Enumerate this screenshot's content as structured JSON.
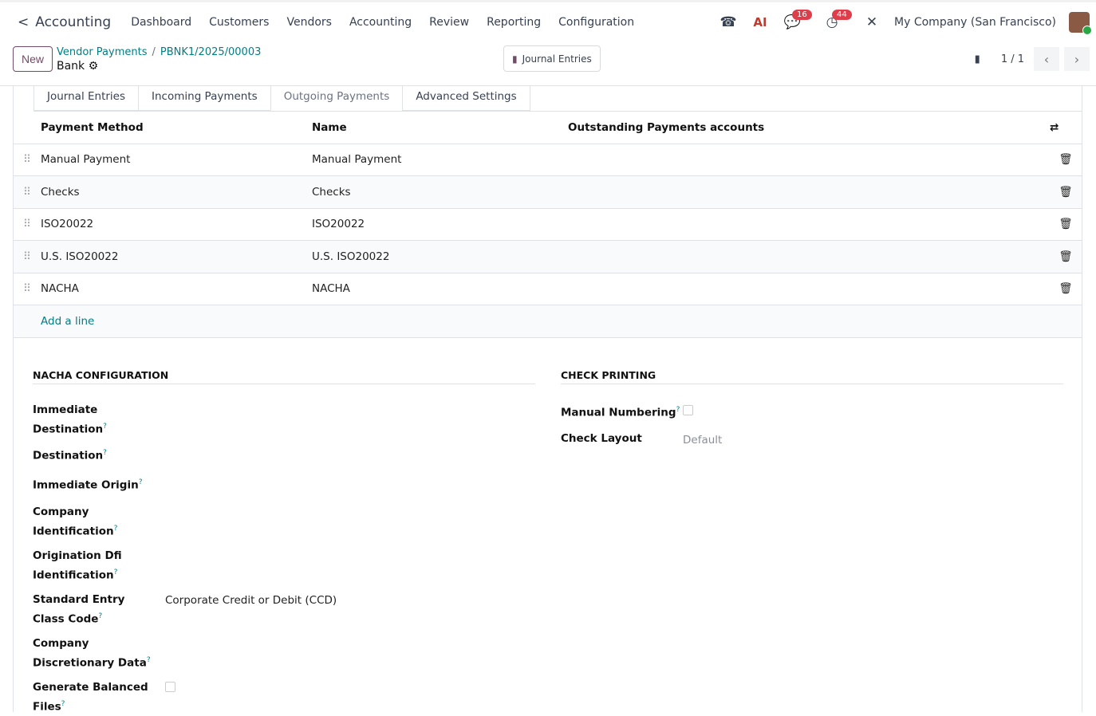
{
  "nav": {
    "app": "Accounting",
    "menu": [
      "Dashboard",
      "Customers",
      "Vendors",
      "Accounting",
      "Review",
      "Reporting",
      "Configuration"
    ],
    "ai": "AI",
    "messages_count": "16",
    "activities_count": "44",
    "company": "My Company (San Francisco)"
  },
  "control": {
    "new": "New",
    "breadcrumb": [
      "Vendor Payments",
      "PBNK1/2025/00003"
    ],
    "record": "Bank",
    "journal_entries": "Journal Entries",
    "pager": "1 / 1"
  },
  "tabs": [
    "Journal Entries",
    "Incoming Payments",
    "Outgoing Payments",
    "Advanced Settings"
  ],
  "active_tab": "Outgoing Payments",
  "table": {
    "headers": [
      "Payment Method",
      "Name",
      "Outstanding Payments accounts"
    ],
    "rows": [
      {
        "method": "Manual Payment",
        "name": "Manual Payment"
      },
      {
        "method": "Checks",
        "name": "Checks"
      },
      {
        "method": "ISO20022",
        "name": "ISO20022"
      },
      {
        "method": "U.S. ISO20022",
        "name": "U.S. ISO20022"
      },
      {
        "method": "NACHA",
        "name": "NACHA"
      }
    ],
    "add_line": "Add a line"
  },
  "nacha": {
    "title": "NACHA CONFIGURATION",
    "fields": [
      {
        "label": "Immediate Destination",
        "value": ""
      },
      {
        "label": "Destination",
        "value": ""
      },
      {
        "label": "Immediate Origin",
        "value": ""
      },
      {
        "label": "Company Identification",
        "value": ""
      },
      {
        "label": "Origination Dfi Identification",
        "value": ""
      },
      {
        "label": "Standard Entry Class Code",
        "value": "Corporate Credit or Debit (CCD)"
      },
      {
        "label": "Company Discretionary Data",
        "value": ""
      },
      {
        "label": "Generate Balanced Files",
        "value": false
      }
    ]
  },
  "check": {
    "title": "CHECK PRINTING",
    "manual_numbering_label": "Manual Numbering",
    "manual_numbering": false,
    "layout_label": "Check Layout",
    "layout_placeholder": "Default"
  }
}
